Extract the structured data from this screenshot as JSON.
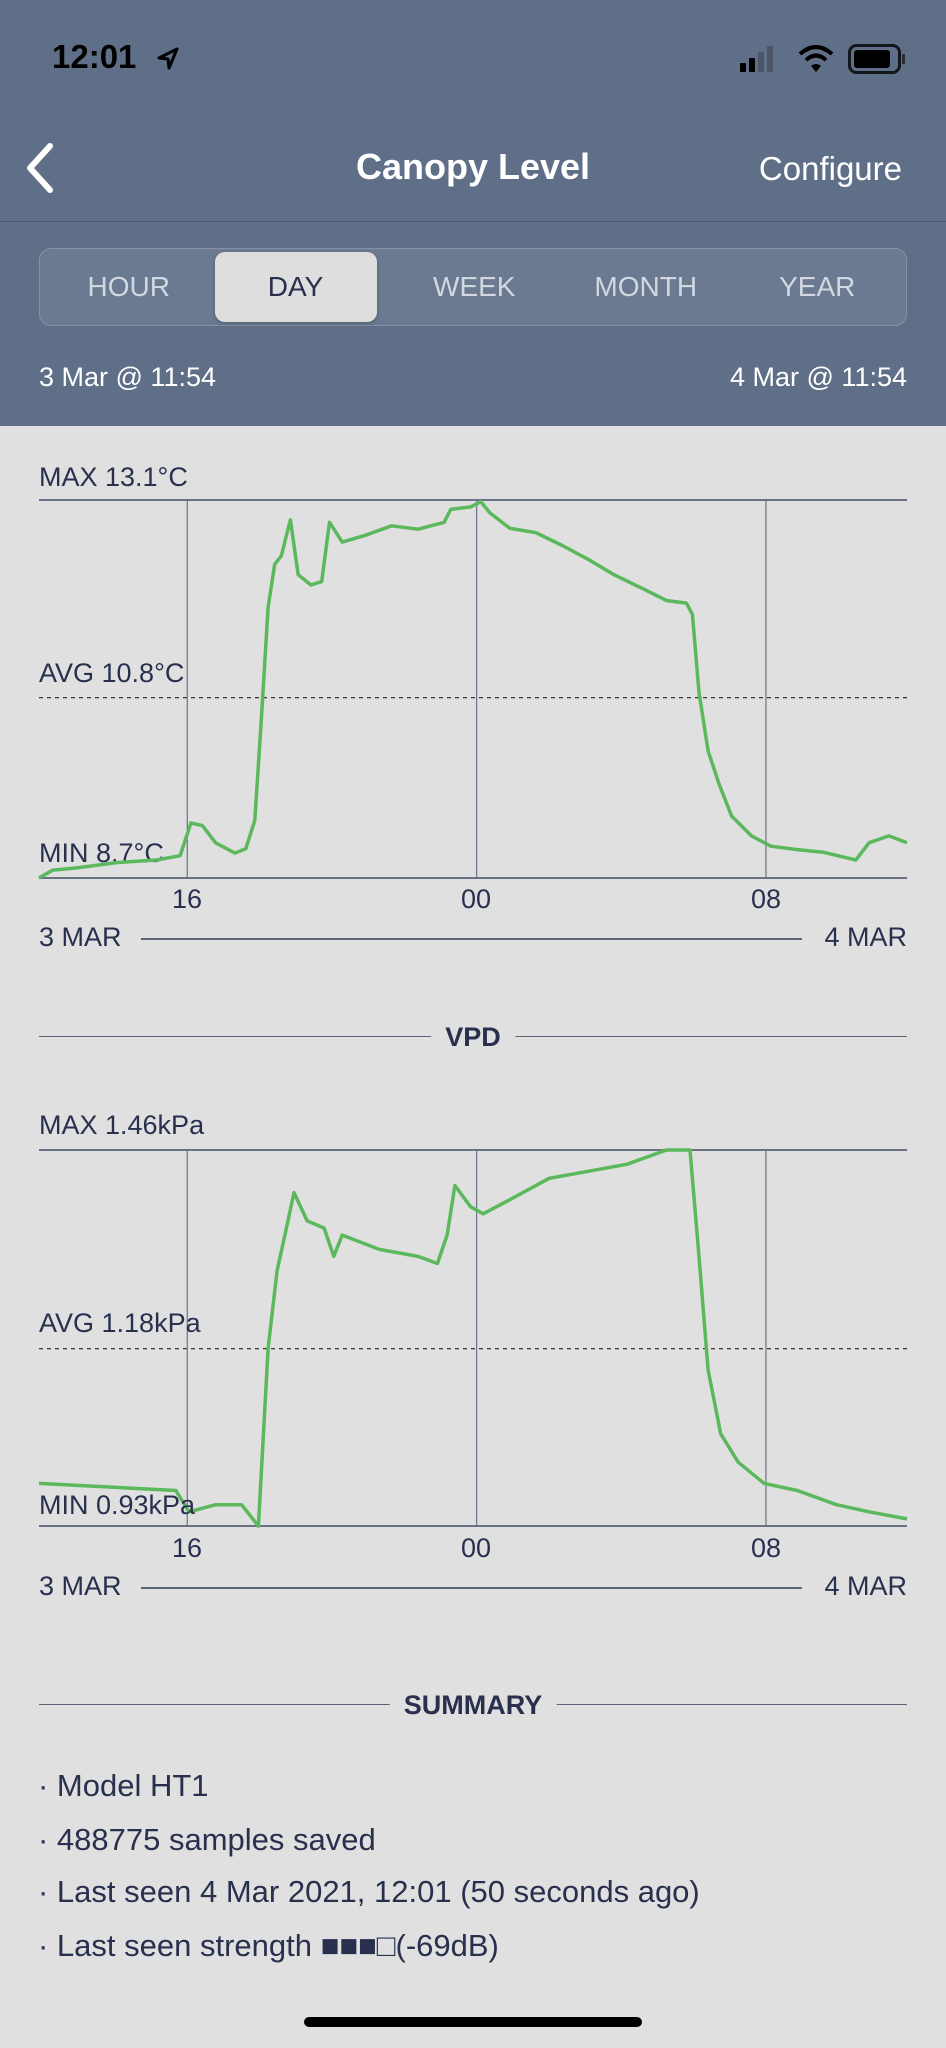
{
  "status_bar": {
    "time": "12:01",
    "icons": [
      "location-arrow-icon",
      "signal-icon",
      "wifi-icon",
      "battery-icon"
    ]
  },
  "nav": {
    "title": "Canopy Level",
    "configure_label": "Configure",
    "back_icon": "chevron-left-icon"
  },
  "segments": [
    {
      "label": "HOUR",
      "active": false
    },
    {
      "label": "DAY",
      "active": true
    },
    {
      "label": "WEEK",
      "active": false
    },
    {
      "label": "MONTH",
      "active": false
    },
    {
      "label": "YEAR",
      "active": false
    }
  ],
  "range": {
    "start": "3 Mar @ 11:54",
    "end": "4 Mar @ 11:54"
  },
  "colors": {
    "header": "#5f6f87",
    "line": "#5cb85c",
    "text": "#28304e",
    "background": "#e0e0e0"
  },
  "section_vpd": "VPD",
  "section_summary": "SUMMARY",
  "chart_data": [
    {
      "type": "line",
      "max_label": "MAX 13.1°C",
      "avg_label": "AVG 10.8°C",
      "min_label": "MIN 8.7°C",
      "ylim": [
        8.7,
        13.1
      ],
      "avg": 10.8,
      "xlim": [
        "3 Mar 11:54",
        "4 Mar 11:54"
      ],
      "x_ticks": [
        {
          "label": "16",
          "at": "3 Mar 16:00"
        },
        {
          "label": "00",
          "at": "4 Mar 00:00"
        },
        {
          "label": "08",
          "at": "4 Mar 08:00"
        }
      ],
      "date_start": "3 MAR",
      "date_end": "4 MAR",
      "points": [
        [
          "3 Mar 11:54",
          8.7
        ],
        [
          "3 Mar 12:16",
          8.79
        ],
        [
          "3 Mar 12:59",
          8.82
        ],
        [
          "3 Mar 14:04",
          8.88
        ],
        [
          "3 Mar 15:09",
          8.91
        ],
        [
          "3 Mar 15:48",
          8.96
        ],
        [
          "3 Mar 16:06",
          9.34
        ],
        [
          "3 Mar 16:25",
          9.31
        ],
        [
          "3 Mar 16:47",
          9.11
        ],
        [
          "3 Mar 17:19",
          8.99
        ],
        [
          "3 Mar 17:37",
          9.04
        ],
        [
          "3 Mar 17:52",
          9.37
        ],
        [
          "3 Mar 18:03",
          10.56
        ],
        [
          "3 Mar 18:14",
          11.85
        ],
        [
          "3 Mar 18:25",
          12.35
        ],
        [
          "3 Mar 18:36",
          12.45
        ],
        [
          "3 Mar 18:51",
          12.87
        ],
        [
          "3 Mar 19:04",
          12.23
        ],
        [
          "3 Mar 19:25",
          12.11
        ],
        [
          "3 Mar 19:43",
          12.15
        ],
        [
          "3 Mar 19:56",
          12.84
        ],
        [
          "3 Mar 20:17",
          12.61
        ],
        [
          "3 Mar 20:56",
          12.69
        ],
        [
          "3 Mar 21:39",
          12.8
        ],
        [
          "3 Mar 22:23",
          12.76
        ],
        [
          "3 Mar 23:06",
          12.84
        ],
        [
          "3 Mar 23:17",
          12.99
        ],
        [
          "3 Mar 23:50",
          13.02
        ],
        [
          "4 Mar 00:07",
          13.08
        ],
        [
          "4 Mar 00:22",
          12.95
        ],
        [
          "4 Mar 00:55",
          12.77
        ],
        [
          "4 Mar 01:38",
          12.72
        ],
        [
          "4 Mar 02:22",
          12.57
        ],
        [
          "4 Mar 03:05",
          12.41
        ],
        [
          "4 Mar 03:48",
          12.23
        ],
        [
          "4 Mar 04:32",
          12.08
        ],
        [
          "4 Mar 05:15",
          11.93
        ],
        [
          "4 Mar 05:48",
          11.9
        ],
        [
          "4 Mar 05:58",
          11.77
        ],
        [
          "4 Mar 06:09",
          10.86
        ],
        [
          "4 Mar 06:24",
          10.18
        ],
        [
          "4 Mar 06:42",
          9.8
        ],
        [
          "4 Mar 07:03",
          9.42
        ],
        [
          "4 Mar 07:36",
          9.19
        ],
        [
          "4 Mar 08:08",
          9.07
        ],
        [
          "4 Mar 08:52",
          9.03
        ],
        [
          "4 Mar 09:35",
          9.0
        ],
        [
          "4 Mar 10:29",
          8.91
        ],
        [
          "4 Mar 10:51",
          9.11
        ],
        [
          "4 Mar 11:24",
          9.19
        ],
        [
          "4 Mar 11:54",
          9.11
        ]
      ]
    },
    {
      "type": "line",
      "max_label": "MAX 1.46kPa",
      "avg_label": "AVG 1.18kPa",
      "min_label": "MIN 0.93kPa",
      "ylim": [
        0.93,
        1.46
      ],
      "avg": 1.18,
      "xlim": [
        "3 Mar 11:54",
        "4 Mar 11:54"
      ],
      "x_ticks": [
        {
          "label": "16",
          "at": "3 Mar 16:00"
        },
        {
          "label": "00",
          "at": "4 Mar 00:00"
        },
        {
          "label": "08",
          "at": "4 Mar 08:00"
        }
      ],
      "date_start": "3 MAR",
      "date_end": "4 MAR",
      "points": [
        [
          "3 Mar 11:54",
          0.99
        ],
        [
          "3 Mar 15:41",
          0.98
        ],
        [
          "3 Mar 16:03",
          0.95
        ],
        [
          "3 Mar 16:47",
          0.96
        ],
        [
          "3 Mar 17:30",
          0.96
        ],
        [
          "3 Mar 17:58",
          0.93
        ],
        [
          "3 Mar 18:14",
          1.18
        ],
        [
          "3 Mar 18:29",
          1.29
        ],
        [
          "3 Mar 18:42",
          1.34
        ],
        [
          "3 Mar 18:57",
          1.4
        ],
        [
          "3 Mar 19:19",
          1.36
        ],
        [
          "3 Mar 19:47",
          1.35
        ],
        [
          "3 Mar 20:03",
          1.31
        ],
        [
          "3 Mar 20:17",
          1.34
        ],
        [
          "3 Mar 21:18",
          1.32
        ],
        [
          "3 Mar 22:23",
          1.31
        ],
        [
          "3 Mar 22:55",
          1.3
        ],
        [
          "3 Mar 23:11",
          1.34
        ],
        [
          "3 Mar 23:24",
          1.41
        ],
        [
          "3 Mar 23:50",
          1.38
        ],
        [
          "4 Mar 00:11",
          1.37
        ],
        [
          "4 Mar 00:55",
          1.39
        ],
        [
          "4 Mar 02:00",
          1.42
        ],
        [
          "4 Mar 03:05",
          1.43
        ],
        [
          "4 Mar 04:10",
          1.44
        ],
        [
          "4 Mar 05:15",
          1.46
        ],
        [
          "4 Mar 05:54",
          1.46
        ],
        [
          "4 Mar 06:09",
          1.31
        ],
        [
          "4 Mar 06:24",
          1.15
        ],
        [
          "4 Mar 06:45",
          1.06
        ],
        [
          "4 Mar 07:14",
          1.02
        ],
        [
          "4 Mar 07:57",
          0.99
        ],
        [
          "4 Mar 08:52",
          0.98
        ],
        [
          "4 Mar 09:57",
          0.96
        ],
        [
          "4 Mar 10:51",
          0.95
        ],
        [
          "4 Mar 11:54",
          0.94
        ]
      ]
    }
  ],
  "summary": {
    "items": [
      "· Model HT1",
      "· 488775 samples saved",
      "· Last seen 4 Mar 2021, 12:01 (50 seconds ago)",
      "· Last seen strength  ■■■□(-69dB)"
    ]
  }
}
